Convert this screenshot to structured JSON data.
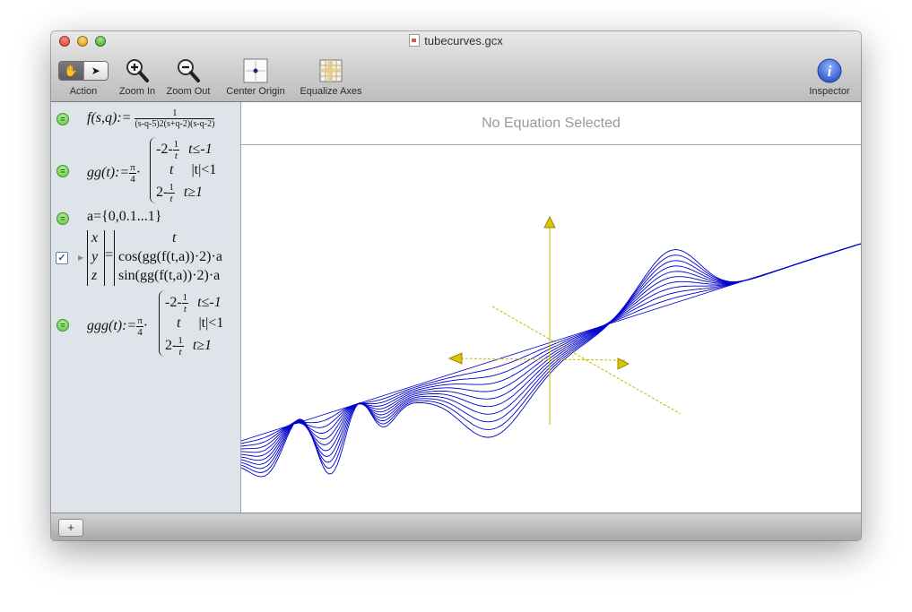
{
  "window": {
    "title": "tubecurves.gcx"
  },
  "toolbar": {
    "action_label": "Action",
    "zoom_in_label": "Zoom In",
    "zoom_out_label": "Zoom Out",
    "center_origin_label": "Center Origin",
    "equalize_axes_label": "Equalize Axes",
    "inspector_label": "Inspector"
  },
  "equations": {
    "eq1": {
      "lhs": "f(s,q):=",
      "numerator": "1",
      "denominator": "(s-q-5)2(s+q-2)(s-q-2)"
    },
    "eq2": {
      "lhs": "gg(t):=",
      "coef_num": "π",
      "coef_den": "4",
      "case1": "-2-",
      "case1_cond": "t≤-1",
      "case2": "t",
      "case2_cond": "|t|<1",
      "case3": "2-",
      "case3_cond": "t≥1",
      "frac_num": "1",
      "frac_den": "t"
    },
    "eq3": {
      "text": "a={0,0.1...1}"
    },
    "eq4": {
      "x": "x",
      "y": "y",
      "z": "z",
      "r1": "t",
      "r2": "cos(gg(f(t,a))·2)·a",
      "r3": "sin(gg(f(t,a))·2)·a"
    },
    "eq5": {
      "lhs": "ggg(t):=",
      "coef_num": "π",
      "coef_den": "4",
      "case1": "-2-",
      "case1_cond": "t≤-1",
      "case2": "t",
      "case2_cond": "|t|<1",
      "case3": "2-",
      "case3_cond": "t≥1",
      "frac_num": "1",
      "frac_den": "t"
    }
  },
  "main": {
    "header": "No Equation Selected"
  },
  "bottom": {
    "add_label": "+"
  },
  "colors": {
    "curve": "#0000cc",
    "axis": "#c9b800",
    "sidebar": "#dfe4eb"
  },
  "icons": {
    "action": "hand-arrow-segmented-icon",
    "zoom_in": "magnifier-plus-icon",
    "zoom_out": "magnifier-minus-icon",
    "center_origin": "crosshair-icon",
    "equalize_axes": "grid-ruler-icon",
    "inspector": "info-icon"
  }
}
